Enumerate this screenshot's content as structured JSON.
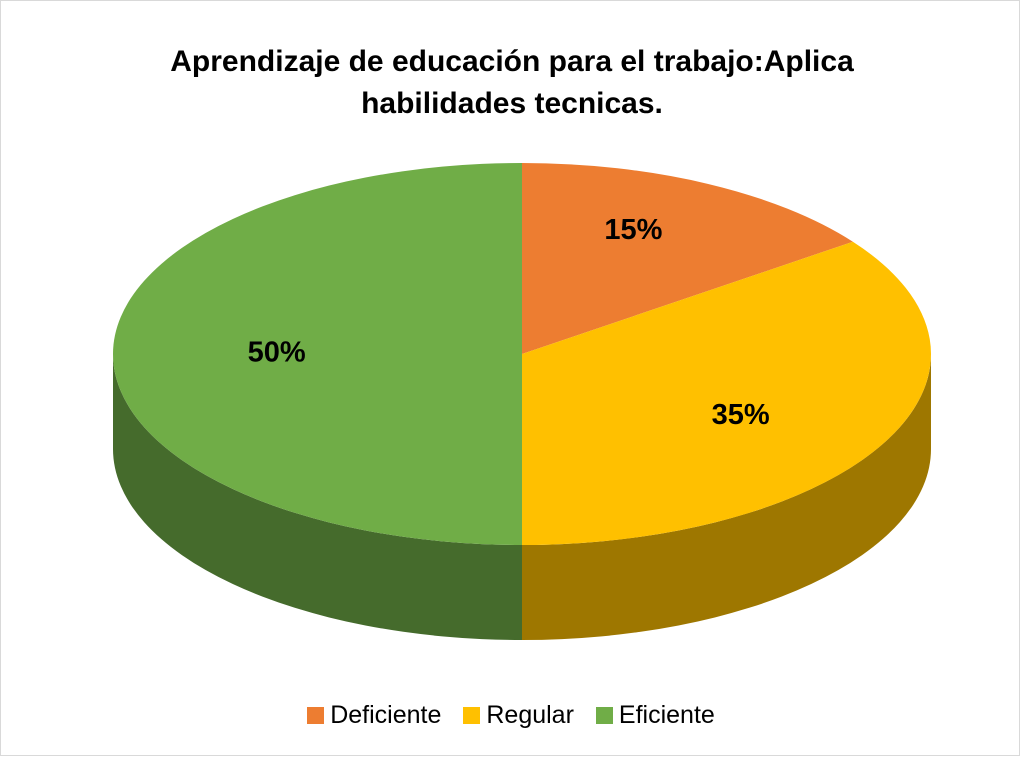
{
  "chart_data": {
    "type": "pie",
    "title": "Aprendizaje de educación para el trabajo:Aplica habilidades tecnicas.",
    "categories": [
      "Deficiente",
      "Regular",
      "Eficiente"
    ],
    "values": [
      15,
      35,
      50
    ],
    "value_labels": [
      "15%",
      "35%",
      "50%"
    ],
    "colors": [
      "#ed7d31",
      "#ffc000",
      "#70ad47"
    ],
    "legend": "bottom"
  }
}
